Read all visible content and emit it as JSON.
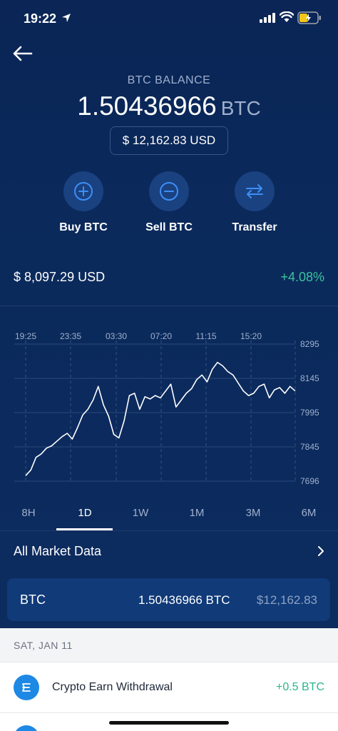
{
  "status_bar": {
    "time": "19:22"
  },
  "balance": {
    "label": "BTC BALANCE",
    "amount": "1.50436966",
    "unit": "BTC",
    "usd_value": "$ 12,162.83 USD"
  },
  "actions": [
    {
      "label": "Buy BTC",
      "icon": "plus-circle-icon"
    },
    {
      "label": "Sell BTC",
      "icon": "minus-circle-icon"
    },
    {
      "label": "Transfer",
      "icon": "transfer-arrows-icon"
    }
  ],
  "price": {
    "value": "$ 8,097.29 USD",
    "change": "+4.08%",
    "change_color": "#3cc29c"
  },
  "chart_data": {
    "type": "line",
    "x_tick_labels": [
      "19:25",
      "23:35",
      "03:30",
      "07:20",
      "11:15",
      "15:20"
    ],
    "y_tick_labels": [
      "8295",
      "8145",
      "7995",
      "7845",
      "7696"
    ],
    "ylim": [
      7696,
      8295
    ],
    "y_series": [
      7720,
      7745,
      7800,
      7815,
      7840,
      7850,
      7870,
      7890,
      7905,
      7880,
      7930,
      7985,
      8010,
      8050,
      8110,
      8030,
      7980,
      7900,
      7885,
      7960,
      8070,
      8080,
      8010,
      8065,
      8055,
      8070,
      8060,
      8090,
      8120,
      8020,
      8050,
      8080,
      8100,
      8140,
      8160,
      8130,
      8185,
      8215,
      8200,
      8175,
      8160,
      8125,
      8090,
      8070,
      8080,
      8110,
      8120,
      8060,
      8095,
      8105,
      8080,
      8110,
      8090
    ],
    "line_color": "#ffffff"
  },
  "time_ranges": [
    {
      "label": "8H",
      "active": false
    },
    {
      "label": "1D",
      "active": true
    },
    {
      "label": "1W",
      "active": false
    },
    {
      "label": "1M",
      "active": false
    },
    {
      "label": "3M",
      "active": false
    },
    {
      "label": "6M",
      "active": false
    }
  ],
  "market": {
    "label": "All Market Data"
  },
  "wallet": {
    "symbol": "BTC",
    "amount": "1.50436966 BTC",
    "usd": "$12,162.83"
  },
  "transactions": {
    "date": "SAT, JAN 11",
    "items": [
      {
        "title": "Crypto Earn Withdrawal",
        "amount": "+0.5 BTC"
      }
    ]
  },
  "colors": {
    "background": "#0b2450",
    "accent_blue": "#1e88e5",
    "positive": "#3cc29c"
  }
}
